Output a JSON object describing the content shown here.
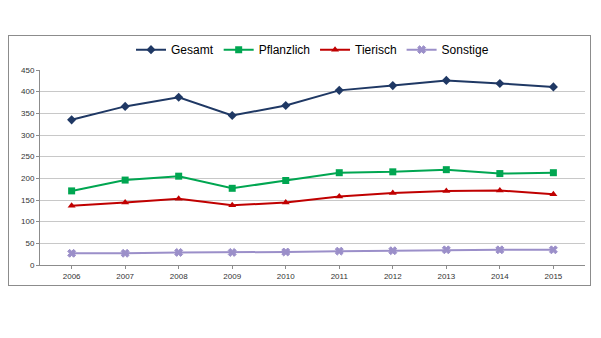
{
  "chart_data": {
    "type": "line",
    "categories": [
      "2006",
      "2007",
      "2008",
      "2009",
      "2010",
      "2011",
      "2012",
      "2013",
      "2014",
      "2015"
    ],
    "series": [
      {
        "name": "Gesamt",
        "color": "#1f3864",
        "marker": "diamond",
        "line_style": "solid",
        "values": [
          335,
          366,
          387,
          345,
          368,
          403,
          414,
          426,
          419,
          411
        ]
      },
      {
        "name": "Pflanzlich",
        "color": "#00a651",
        "marker": "square",
        "line_style": "solid",
        "values": [
          171,
          196,
          205,
          177,
          195,
          213,
          215,
          220,
          211,
          213
        ]
      },
      {
        "name": "Tierisch",
        "color": "#c00000",
        "marker": "triangle",
        "line_style": "solid",
        "values": [
          137,
          144,
          153,
          138,
          144,
          158,
          166,
          171,
          172,
          163
        ]
      },
      {
        "name": "Sonstige",
        "color": "#9b8fc9",
        "marker": "x",
        "line_style": "solid",
        "values": [
          27,
          27,
          29,
          29,
          30,
          32,
          33,
          35,
          35,
          35
        ]
      }
    ],
    "ylim": [
      0,
      450
    ],
    "yticks": [
      0,
      50,
      100,
      150,
      200,
      250,
      300,
      350,
      400,
      450
    ],
    "grid": true,
    "legend": "top"
  }
}
